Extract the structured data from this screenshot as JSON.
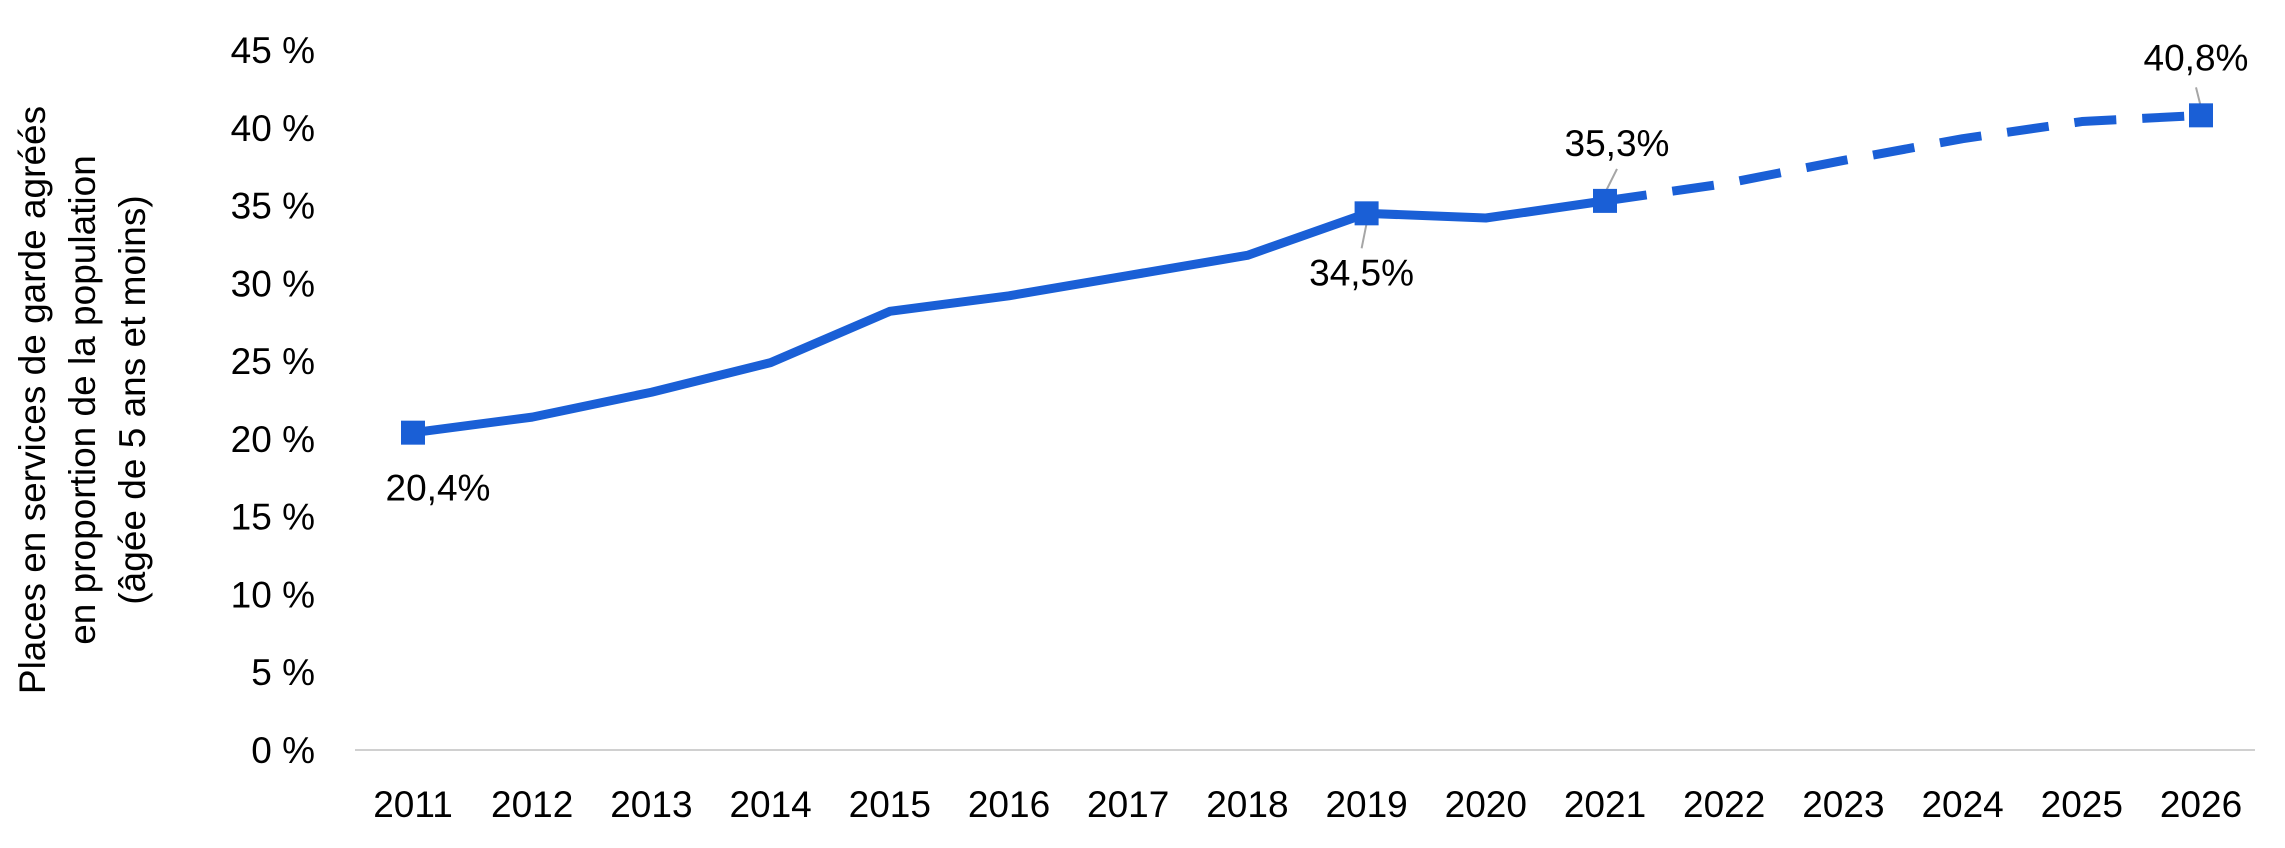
{
  "chart_data": {
    "type": "line",
    "ylabel_lines": [
      "Places en services de garde agréés",
      "en proportion de la population",
      "(âgée de 5 ans et moins)"
    ],
    "categories": [
      "2011",
      "2012",
      "2013",
      "2014",
      "2015",
      "2016",
      "2017",
      "2018",
      "2019",
      "2020",
      "2021",
      "2022",
      "2023",
      "2024",
      "2025",
      "2026"
    ],
    "y_ticks": [
      "0 %",
      "5 %",
      "10 %",
      "15 %",
      "20 %",
      "25 %",
      "30 %",
      "35 %",
      "40 %",
      "45 %"
    ],
    "ylim": [
      0,
      45
    ],
    "grid": false,
    "series": [
      {
        "style": "solid",
        "color": "#1a5fd6",
        "x": [
          "2011",
          "2012",
          "2013",
          "2014",
          "2015",
          "2016",
          "2017",
          "2018",
          "2019",
          "2020",
          "2021"
        ],
        "values": [
          20.4,
          21.4,
          23.0,
          24.9,
          28.2,
          29.2,
          30.5,
          31.8,
          34.5,
          34.2,
          35.3
        ]
      },
      {
        "style": "dashed",
        "color": "#1a5fd6",
        "x": [
          "2021",
          "2022",
          "2023",
          "2024",
          "2025",
          "2026"
        ],
        "values": [
          35.3,
          36.4,
          37.9,
          39.3,
          40.4,
          40.8
        ]
      }
    ],
    "markers": [
      {
        "x": "2011",
        "value": 20.4,
        "label": "20,4%"
      },
      {
        "x": "2019",
        "value": 34.5,
        "label": "34,5%"
      },
      {
        "x": "2021",
        "value": 35.3,
        "label": "35,3%"
      },
      {
        "x": "2026",
        "value": 40.8,
        "label": "40,8%"
      }
    ]
  }
}
